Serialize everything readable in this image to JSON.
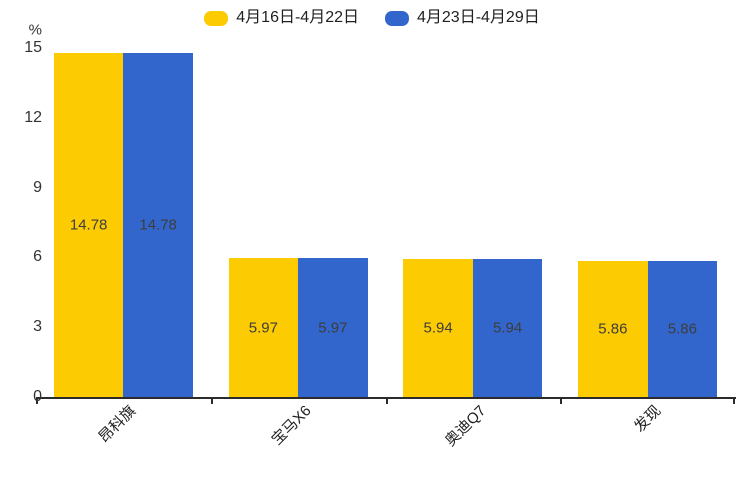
{
  "chart_data": {
    "type": "bar",
    "title": "",
    "categories": [
      "昂科旗",
      "宝马X6",
      "奥迪Q7",
      "发现"
    ],
    "series": [
      {
        "name": "4月16日-4月22日",
        "color": "#FDCB02",
        "values": [
          14.78,
          5.97,
          5.94,
          5.86
        ]
      },
      {
        "name": "4月23日-4月29日",
        "color": "#3366CC",
        "values": [
          14.78,
          5.97,
          5.94,
          5.86
        ]
      }
    ],
    "ylabel": "%",
    "ylim": [
      0,
      15
    ],
    "yticks": [
      0,
      3,
      6,
      9,
      12,
      15
    ],
    "grid": false,
    "legend_position": "top",
    "value_labels": "inside-center",
    "x_label_rotation_deg": 45
  },
  "colors": {
    "background": "#ffffff",
    "axis": "#2b2b2b",
    "tick_text": "#333333",
    "value_text": "#3d3d3d",
    "category_text": "#1f1f1f"
  }
}
